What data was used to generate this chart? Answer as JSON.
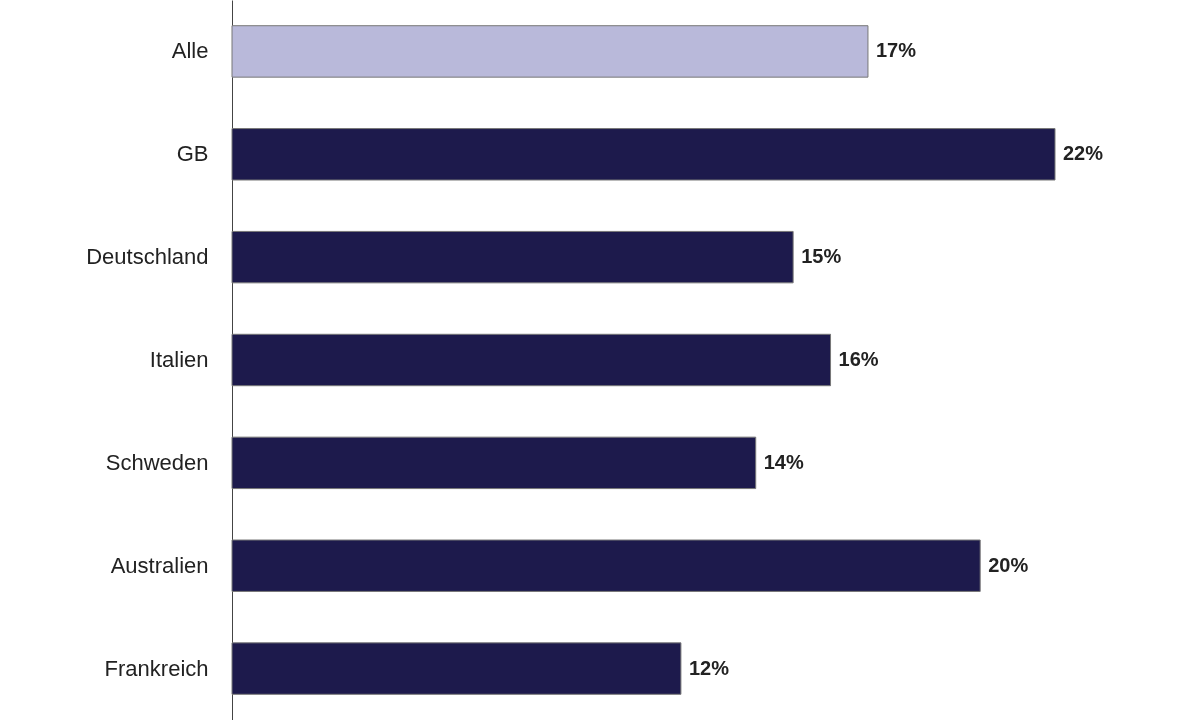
{
  "chart_data": {
    "type": "bar",
    "orientation": "horizontal",
    "categories": [
      "Alle",
      "GB",
      "Deutschland",
      "Italien",
      "Schweden",
      "Australien",
      "Frankreich"
    ],
    "values": [
      17,
      22,
      15,
      16,
      14,
      20,
      12
    ],
    "colors": [
      "#b9b9da",
      "#1d1a4c",
      "#1d1a4c",
      "#1d1a4c",
      "#1d1a4c",
      "#1d1a4c",
      "#1d1a4c"
    ],
    "value_labels": [
      "17%",
      "22%",
      "15%",
      "16%",
      "14%",
      "20%",
      "12%"
    ],
    "tick_labels": "y"
  }
}
